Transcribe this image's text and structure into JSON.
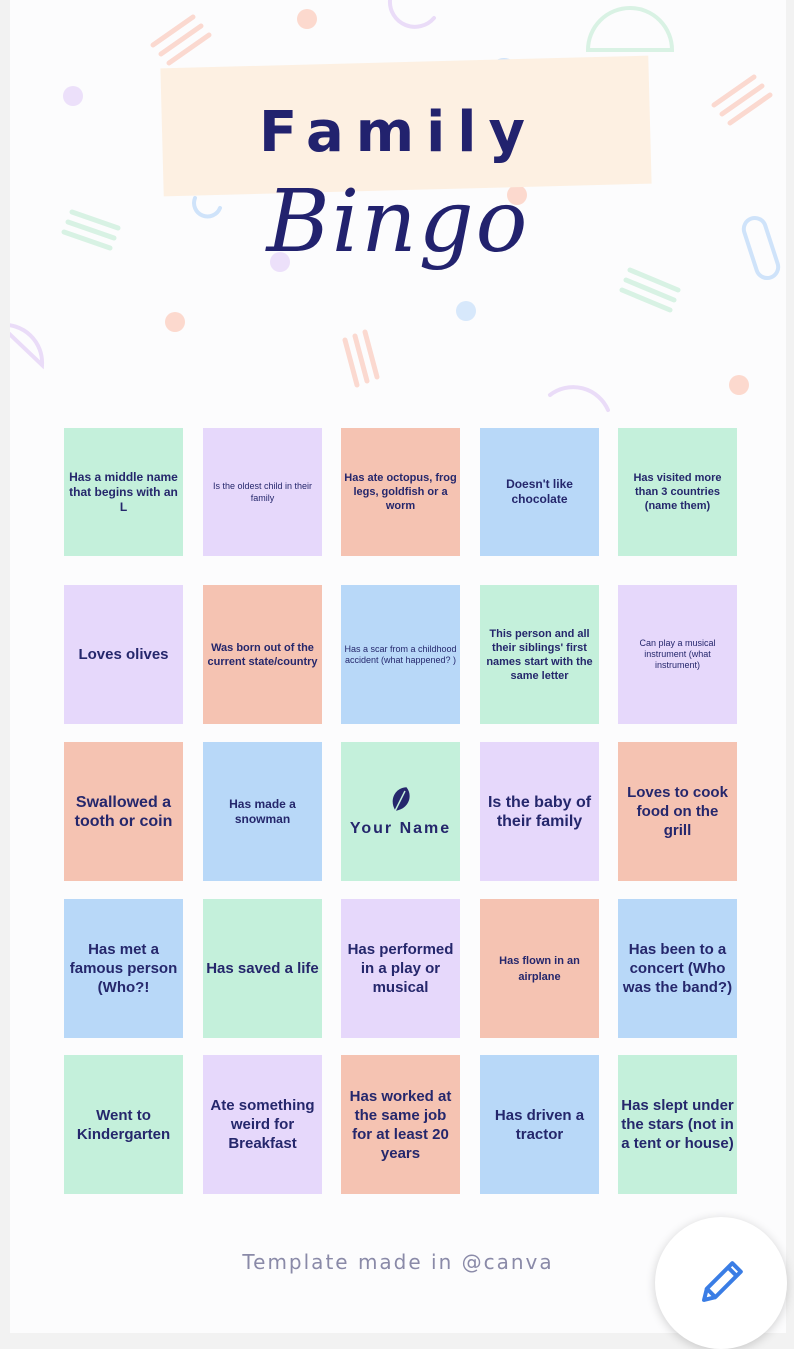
{
  "header": {
    "title_main": "Family",
    "title_script": "Bingo"
  },
  "colors": {
    "green": "#c4f0db",
    "purple": "#e6d8fb",
    "salmon": "#f5c3b2",
    "blue": "#b8d8f8",
    "text": "#25276c"
  },
  "grid": {
    "rows": [
      [
        {
          "text": "Has a middle name that begins with an L",
          "color": "green"
        },
        {
          "text": "Is the oldest child in their family",
          "color": "purple"
        },
        {
          "text": "Has ate octopus, frog legs, goldfish or a worm",
          "color": "salmon"
        },
        {
          "text": "Doesn't like chocolate",
          "color": "blue"
        },
        {
          "text": "Has visited more than 3 countries (name them)",
          "color": "green"
        }
      ],
      [
        {
          "text": "Loves olives",
          "color": "purple"
        },
        {
          "text": "Was born out of the current state/country",
          "color": "salmon"
        },
        {
          "text": "Has a scar from a childhood accident (what happened? )",
          "color": "blue"
        },
        {
          "text": "This person and all their siblings' first names start with the same letter",
          "color": "green"
        },
        {
          "text": "Can play a musical instrument (what instrument)",
          "color": "purple"
        }
      ],
      [
        {
          "text": "Swallowed a tooth or coin",
          "color": "salmon"
        },
        {
          "text": "Has made a snowman",
          "color": "blue"
        },
        {
          "text": "Your Name",
          "color": "green",
          "icon": "leaf-icon"
        },
        {
          "text": "Is the baby of their family",
          "color": "purple"
        },
        {
          "text": "Loves to cook food on the grill",
          "color": "salmon"
        }
      ],
      [
        {
          "text": "Has met a famous person (Who?!",
          "color": "blue"
        },
        {
          "text": "Has saved a life",
          "color": "green"
        },
        {
          "text": "Has performed in a play or musical",
          "color": "purple"
        },
        {
          "text": "Has flown in an airplane",
          "color": "salmon"
        },
        {
          "text": "Has been to a concert (Who was the band?)",
          "color": "blue"
        }
      ],
      [
        {
          "text": "Went to Kindergarten",
          "color": "green"
        },
        {
          "text": "Ate something weird for Breakfast",
          "color": "purple"
        },
        {
          "text": "Has worked at the same job for at least 20 years",
          "color": "salmon"
        },
        {
          "text": "Has driven a tractor",
          "color": "blue"
        },
        {
          "text": "Has slept under the stars (not in a tent or house)",
          "color": "green"
        }
      ]
    ]
  },
  "footer": {
    "text": "Template made in @canva"
  },
  "fab": {
    "icon": "pencil-icon"
  }
}
